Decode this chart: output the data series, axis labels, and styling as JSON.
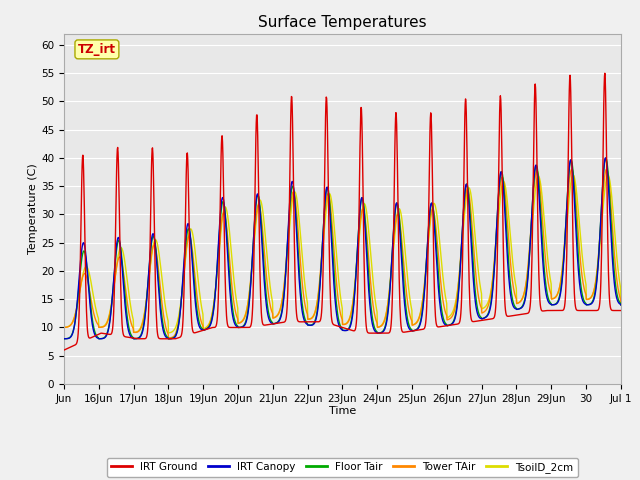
{
  "title": "Surface Temperatures",
  "xlabel": "Time",
  "ylabel": "Temperature (C)",
  "ylim": [
    0,
    62
  ],
  "yticks": [
    0,
    5,
    10,
    15,
    20,
    25,
    30,
    35,
    40,
    45,
    50,
    55,
    60
  ],
  "x_labels": [
    "Jun",
    "16Jun",
    "17Jun",
    "18Jun",
    "19Jun",
    "20Jun",
    "21Jun",
    "22Jun",
    "23Jun",
    "24Jun",
    "25Jun",
    "26Jun",
    "27Jun",
    "28Jun",
    "29Jun",
    "30",
    "Jul 1"
  ],
  "annotation_text": "TZ_irt",
  "annotation_bg": "#ffffaa",
  "annotation_border": "#aaaa00",
  "annotation_text_color": "#cc0000",
  "plot_bg_color": "#e8e8e8",
  "fig_bg_color": "#f0f0f0",
  "line_colors": {
    "IRT Ground": "#dd0000",
    "IRT Canopy": "#0000cc",
    "Floor Tair": "#00aa00",
    "Tower TAir": "#ff8800",
    "TsoilD_2cm": "#dddd00"
  },
  "n_days": 16,
  "title_fontsize": 11,
  "axis_label_fontsize": 8,
  "tick_fontsize": 7.5
}
